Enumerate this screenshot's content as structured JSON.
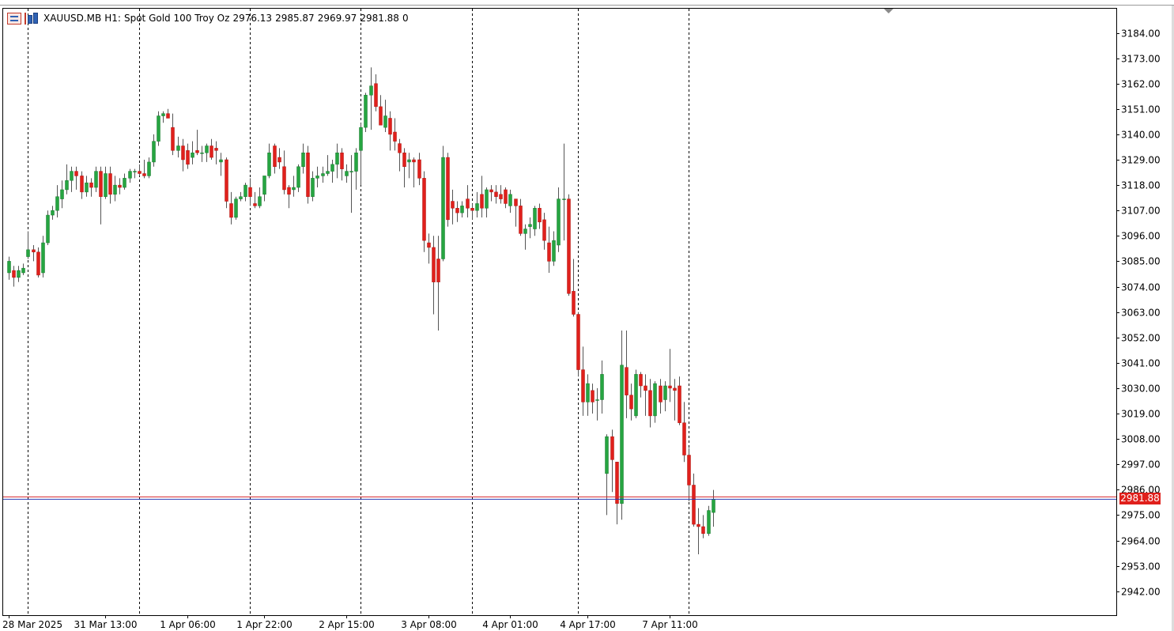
{
  "header": {
    "symbol": "XAUUSD.MB",
    "timeframe": "H1:",
    "description": "Spot Gold 100 Troy Oz",
    "open": "2976.13",
    "high": "2985.87",
    "low": "2969.97",
    "close": "2981.88",
    "extra": "0",
    "icons": [
      "chart-list-icon",
      "bar-chart-icon"
    ]
  },
  "current_price_label": "2981.88",
  "colors": {
    "bull": "#26a541",
    "bear": "#e0201c",
    "wick": "#555555",
    "grid": "#000000",
    "bid_line": "#2a3bb5",
    "ask_line": "#d8262b"
  },
  "chart_data": {
    "type": "candlestick",
    "symbol": "XAUUSD.MB",
    "timeframe": "H1",
    "ylim": [
      2931,
      3195
    ],
    "y_ticks": [
      "3184.00",
      "3173.00",
      "3162.00",
      "3151.00",
      "3140.00",
      "3129.00",
      "3118.00",
      "3107.00",
      "3096.00",
      "3085.00",
      "3074.00",
      "3063.00",
      "3052.00",
      "3041.00",
      "3030.00",
      "3019.00",
      "3008.00",
      "2997.00",
      "2986.00",
      "2975.00",
      "2964.00",
      "2953.00",
      "2942.00"
    ],
    "x_ticks": [
      {
        "label": "28 Mar 2025",
        "index": 0
      },
      {
        "label": "31 Mar 13:00",
        "index": 20
      },
      {
        "label": "1 Apr 06:00",
        "index": 37
      },
      {
        "label": "1 Apr 22:00",
        "index": 53
      },
      {
        "label": "2 Apr 15:00",
        "index": 70
      },
      {
        "label": "3 Apr 08:00",
        "index": 87
      },
      {
        "label": "4 Apr 01:00",
        "index": 104
      },
      {
        "label": "4 Apr 17:00",
        "index": 120
      },
      {
        "label": "7 Apr 11:00",
        "index": 137
      }
    ],
    "day_separators": [
      4,
      27,
      50,
      73,
      96,
      118,
      141
    ],
    "bid": 2981.88,
    "ask": 2982.9,
    "candles": [
      {
        "o": 3080,
        "h": 3087,
        "l": 3077,
        "c": 3085
      },
      {
        "o": 3081,
        "h": 3083,
        "l": 3074,
        "c": 3078
      },
      {
        "o": 3078,
        "h": 3083,
        "l": 3076,
        "c": 3081
      },
      {
        "o": 3080,
        "h": 3084,
        "l": 3079,
        "c": 3082
      },
      {
        "o": 3087,
        "h": 3098,
        "l": 3086,
        "c": 3090
      },
      {
        "o": 3090,
        "h": 3092,
        "l": 3085,
        "c": 3089
      },
      {
        "o": 3089,
        "h": 3091,
        "l": 3078,
        "c": 3079
      },
      {
        "o": 3080,
        "h": 3096,
        "l": 3078,
        "c": 3093
      },
      {
        "o": 3093,
        "h": 3107,
        "l": 3092,
        "c": 3105
      },
      {
        "o": 3105,
        "h": 3109,
        "l": 3103,
        "c": 3107
      },
      {
        "o": 3107,
        "h": 3118,
        "l": 3104,
        "c": 3113
      },
      {
        "o": 3112,
        "h": 3120,
        "l": 3108,
        "c": 3116
      },
      {
        "o": 3116,
        "h": 3127,
        "l": 3114,
        "c": 3120
      },
      {
        "o": 3120,
        "h": 3126,
        "l": 3115,
        "c": 3124
      },
      {
        "o": 3124,
        "h": 3126,
        "l": 3116,
        "c": 3122
      },
      {
        "o": 3122,
        "h": 3124,
        "l": 3112,
        "c": 3115
      },
      {
        "o": 3115,
        "h": 3122,
        "l": 3113,
        "c": 3119
      },
      {
        "o": 3119,
        "h": 3121,
        "l": 3113,
        "c": 3117
      },
      {
        "o": 3117,
        "h": 3126,
        "l": 3115,
        "c": 3124
      },
      {
        "o": 3124,
        "h": 3126,
        "l": 3101,
        "c": 3113
      },
      {
        "o": 3113,
        "h": 3126,
        "l": 3112,
        "c": 3123
      },
      {
        "o": 3123,
        "h": 3126,
        "l": 3110,
        "c": 3114
      },
      {
        "o": 3114,
        "h": 3122,
        "l": 3111,
        "c": 3118
      },
      {
        "o": 3118,
        "h": 3121,
        "l": 3114,
        "c": 3117
      },
      {
        "o": 3117,
        "h": 3123,
        "l": 3116,
        "c": 3121
      },
      {
        "o": 3121,
        "h": 3125,
        "l": 3119,
        "c": 3124
      },
      {
        "o": 3124,
        "h": 3125,
        "l": 3121,
        "c": 3124
      },
      {
        "o": 3124,
        "h": 3127,
        "l": 3122,
        "c": 3123
      },
      {
        "o": 3123,
        "h": 3129,
        "l": 3121,
        "c": 3122
      },
      {
        "o": 3122,
        "h": 3130,
        "l": 3121,
        "c": 3128
      },
      {
        "o": 3128,
        "h": 3140,
        "l": 3126,
        "c": 3137
      },
      {
        "o": 3137,
        "h": 3150,
        "l": 3135,
        "c": 3148
      },
      {
        "o": 3148,
        "h": 3150,
        "l": 3145,
        "c": 3149
      },
      {
        "o": 3149,
        "h": 3151,
        "l": 3147,
        "c": 3147
      },
      {
        "o": 3143,
        "h": 3149,
        "l": 3131,
        "c": 3133
      },
      {
        "o": 3133,
        "h": 3139,
        "l": 3130,
        "c": 3135
      },
      {
        "o": 3135,
        "h": 3138,
        "l": 3124,
        "c": 3129
      },
      {
        "o": 3133,
        "h": 3136,
        "l": 3125,
        "c": 3127
      },
      {
        "o": 3130,
        "h": 3137,
        "l": 3127,
        "c": 3132
      },
      {
        "o": 3133,
        "h": 3142,
        "l": 3131,
        "c": 3132
      },
      {
        "o": 3132,
        "h": 3135,
        "l": 3128,
        "c": 3132
      },
      {
        "o": 3132,
        "h": 3136,
        "l": 3128,
        "c": 3135
      },
      {
        "o": 3135,
        "h": 3138,
        "l": 3129,
        "c": 3130
      },
      {
        "o": 3134,
        "h": 3137,
        "l": 3127,
        "c": 3133
      },
      {
        "o": 3128,
        "h": 3132,
        "l": 3122,
        "c": 3129
      },
      {
        "o": 3129,
        "h": 3130,
        "l": 3108,
        "c": 3111
      },
      {
        "o": 3110,
        "h": 3115,
        "l": 3101,
        "c": 3104
      },
      {
        "o": 3104,
        "h": 3113,
        "l": 3103,
        "c": 3112
      },
      {
        "o": 3112,
        "h": 3115,
        "l": 3111,
        "c": 3113
      },
      {
        "o": 3113,
        "h": 3119,
        "l": 3111,
        "c": 3118
      },
      {
        "o": 3117,
        "h": 3121,
        "l": 3109,
        "c": 3113
      },
      {
        "o": 3110,
        "h": 3115,
        "l": 3108,
        "c": 3109
      },
      {
        "o": 3109,
        "h": 3117,
        "l": 3108,
        "c": 3113
      },
      {
        "o": 3114,
        "h": 3120,
        "l": 3111,
        "c": 3122
      },
      {
        "o": 3122,
        "h": 3136,
        "l": 3121,
        "c": 3132
      },
      {
        "o": 3135,
        "h": 3136,
        "l": 3123,
        "c": 3126
      },
      {
        "o": 3130,
        "h": 3134,
        "l": 3125,
        "c": 3128
      },
      {
        "o": 3126,
        "h": 3133,
        "l": 3114,
        "c": 3116
      },
      {
        "o": 3117,
        "h": 3118,
        "l": 3108,
        "c": 3114
      },
      {
        "o": 3116,
        "h": 3122,
        "l": 3113,
        "c": 3117
      },
      {
        "o": 3117,
        "h": 3127,
        "l": 3115,
        "c": 3126
      },
      {
        "o": 3126,
        "h": 3136,
        "l": 3123,
        "c": 3132
      },
      {
        "o": 3132,
        "h": 3135,
        "l": 3110,
        "c": 3113
      },
      {
        "o": 3113,
        "h": 3124,
        "l": 3111,
        "c": 3121
      },
      {
        "o": 3121,
        "h": 3126,
        "l": 3117,
        "c": 3122
      },
      {
        "o": 3122,
        "h": 3126,
        "l": 3119,
        "c": 3123
      },
      {
        "o": 3123,
        "h": 3131,
        "l": 3122,
        "c": 3124
      },
      {
        "o": 3124,
        "h": 3129,
        "l": 3119,
        "c": 3127
      },
      {
        "o": 3127,
        "h": 3136,
        "l": 3121,
        "c": 3132
      },
      {
        "o": 3132,
        "h": 3134,
        "l": 3120,
        "c": 3125
      },
      {
        "o": 3122,
        "h": 3127,
        "l": 3119,
        "c": 3124
      },
      {
        "o": 3124,
        "h": 3131,
        "l": 3106,
        "c": 3124
      },
      {
        "o": 3124,
        "h": 3134,
        "l": 3116,
        "c": 3132
      },
      {
        "o": 3133,
        "h": 3145,
        "l": 3118,
        "c": 3143
      },
      {
        "o": 3143,
        "h": 3158,
        "l": 3141,
        "c": 3157
      },
      {
        "o": 3157,
        "h": 3169,
        "l": 3142,
        "c": 3161
      },
      {
        "o": 3162,
        "h": 3166,
        "l": 3150,
        "c": 3152
      },
      {
        "o": 3152,
        "h": 3157,
        "l": 3144,
        "c": 3144
      },
      {
        "o": 3143,
        "h": 3155,
        "l": 3141,
        "c": 3148
      },
      {
        "o": 3147,
        "h": 3150,
        "l": 3133,
        "c": 3140
      },
      {
        "o": 3141,
        "h": 3147,
        "l": 3133,
        "c": 3137
      },
      {
        "o": 3136,
        "h": 3138,
        "l": 3124,
        "c": 3132
      },
      {
        "o": 3132,
        "h": 3134,
        "l": 3117,
        "c": 3126
      },
      {
        "o": 3128,
        "h": 3132,
        "l": 3121,
        "c": 3129
      },
      {
        "o": 3129,
        "h": 3130,
        "l": 3117,
        "c": 3128
      },
      {
        "o": 3129,
        "h": 3132,
        "l": 3118,
        "c": 3121
      },
      {
        "o": 3121,
        "h": 3124,
        "l": 3089,
        "c": 3094
      },
      {
        "o": 3093,
        "h": 3097,
        "l": 3084,
        "c": 3091
      },
      {
        "o": 3091,
        "h": 3096,
        "l": 3062,
        "c": 3076
      },
      {
        "o": 3086,
        "h": 3096,
        "l": 3055,
        "c": 3076
      },
      {
        "o": 3086,
        "h": 3135,
        "l": 3085,
        "c": 3130
      },
      {
        "o": 3130,
        "h": 3132,
        "l": 3100,
        "c": 3103
      },
      {
        "o": 3111,
        "h": 3116,
        "l": 3101,
        "c": 3108
      },
      {
        "o": 3108,
        "h": 3111,
        "l": 3102,
        "c": 3106
      },
      {
        "o": 3106,
        "h": 3111,
        "l": 3104,
        "c": 3109
      },
      {
        "o": 3112,
        "h": 3118,
        "l": 3104,
        "c": 3108
      },
      {
        "o": 3108,
        "h": 3110,
        "l": 3103,
        "c": 3107
      },
      {
        "o": 3107,
        "h": 3115,
        "l": 3104,
        "c": 3110
      },
      {
        "o": 3114,
        "h": 3122,
        "l": 3104,
        "c": 3108
      },
      {
        "o": 3108,
        "h": 3117,
        "l": 3104,
        "c": 3116
      },
      {
        "o": 3116,
        "h": 3118,
        "l": 3111,
        "c": 3115
      },
      {
        "o": 3115,
        "h": 3118,
        "l": 3110,
        "c": 3113
      },
      {
        "o": 3114,
        "h": 3118,
        "l": 3110,
        "c": 3112
      },
      {
        "o": 3116,
        "h": 3117,
        "l": 3108,
        "c": 3110
      },
      {
        "o": 3109,
        "h": 3116,
        "l": 3106,
        "c": 3114
      },
      {
        "o": 3112,
        "h": 3112,
        "l": 3100,
        "c": 3109
      },
      {
        "o": 3109,
        "h": 3112,
        "l": 3096,
        "c": 3097
      },
      {
        "o": 3097,
        "h": 3101,
        "l": 3090,
        "c": 3099
      },
      {
        "o": 3100,
        "h": 3104,
        "l": 3095,
        "c": 3101
      },
      {
        "o": 3099,
        "h": 3109,
        "l": 3096,
        "c": 3108
      },
      {
        "o": 3108,
        "h": 3110,
        "l": 3099,
        "c": 3102
      },
      {
        "o": 3103,
        "h": 3106,
        "l": 3090,
        "c": 3094
      },
      {
        "o": 3093,
        "h": 3100,
        "l": 3080,
        "c": 3085
      },
      {
        "o": 3085,
        "h": 3098,
        "l": 3083,
        "c": 3094
      },
      {
        "o": 3092,
        "h": 3117,
        "l": 3089,
        "c": 3112
      },
      {
        "o": 3112,
        "h": 3136,
        "l": 3094,
        "c": 3112
      },
      {
        "o": 3112,
        "h": 3114,
        "l": 3070,
        "c": 3071
      },
      {
        "o": 3072,
        "h": 3086,
        "l": 3061,
        "c": 3062
      },
      {
        "o": 3062,
        "h": 3063,
        "l": 3035,
        "c": 3038
      },
      {
        "o": 3038,
        "h": 3048,
        "l": 3018,
        "c": 3024
      },
      {
        "o": 3024,
        "h": 3036,
        "l": 3018,
        "c": 3032
      },
      {
        "o": 3029,
        "h": 3032,
        "l": 3019,
        "c": 3024
      },
      {
        "o": 3025,
        "h": 3030,
        "l": 3016,
        "c": 3025
      },
      {
        "o": 3025,
        "h": 3042,
        "l": 3019,
        "c": 3036
      },
      {
        "o": 2993,
        "h": 3010,
        "l": 2975,
        "c": 3009
      },
      {
        "o": 3009,
        "h": 3012,
        "l": 2985,
        "c": 2999
      },
      {
        "o": 2998,
        "h": 2998,
        "l": 2971,
        "c": 2980
      },
      {
        "o": 2980,
        "h": 3055,
        "l": 2973,
        "c": 3040
      },
      {
        "o": 3039,
        "h": 3055,
        "l": 3017,
        "c": 3027
      },
      {
        "o": 3027,
        "h": 3032,
        "l": 3016,
        "c": 3021
      },
      {
        "o": 3018,
        "h": 3038,
        "l": 3017,
        "c": 3036
      },
      {
        "o": 3036,
        "h": 3037,
        "l": 3026,
        "c": 3031
      },
      {
        "o": 3031,
        "h": 3036,
        "l": 3018,
        "c": 3029
      },
      {
        "o": 3029,
        "h": 3034,
        "l": 3013,
        "c": 3018
      },
      {
        "o": 3018,
        "h": 3033,
        "l": 3015,
        "c": 3032
      },
      {
        "o": 3031,
        "h": 3034,
        "l": 3019,
        "c": 3024
      },
      {
        "o": 3025,
        "h": 3033,
        "l": 3020,
        "c": 3031
      },
      {
        "o": 3031,
        "h": 3047,
        "l": 3024,
        "c": 3030
      },
      {
        "o": 3030,
        "h": 3034,
        "l": 3016,
        "c": 3029
      },
      {
        "o": 3031,
        "h": 3035,
        "l": 3014,
        "c": 3015
      },
      {
        "o": 3015,
        "h": 3024,
        "l": 2998,
        "c": 3001
      },
      {
        "o": 3001,
        "h": 3004,
        "l": 2981,
        "c": 2988
      },
      {
        "o": 2988,
        "h": 2993,
        "l": 2970,
        "c": 2971
      },
      {
        "o": 2971,
        "h": 2978,
        "l": 2958,
        "c": 2970
      },
      {
        "o": 2970,
        "h": 2975,
        "l": 2965,
        "c": 2967
      },
      {
        "o": 2967,
        "h": 2979,
        "l": 2966,
        "c": 2977
      },
      {
        "o": 2976.13,
        "h": 2985.87,
        "l": 2969.97,
        "c": 2981.88
      }
    ]
  }
}
